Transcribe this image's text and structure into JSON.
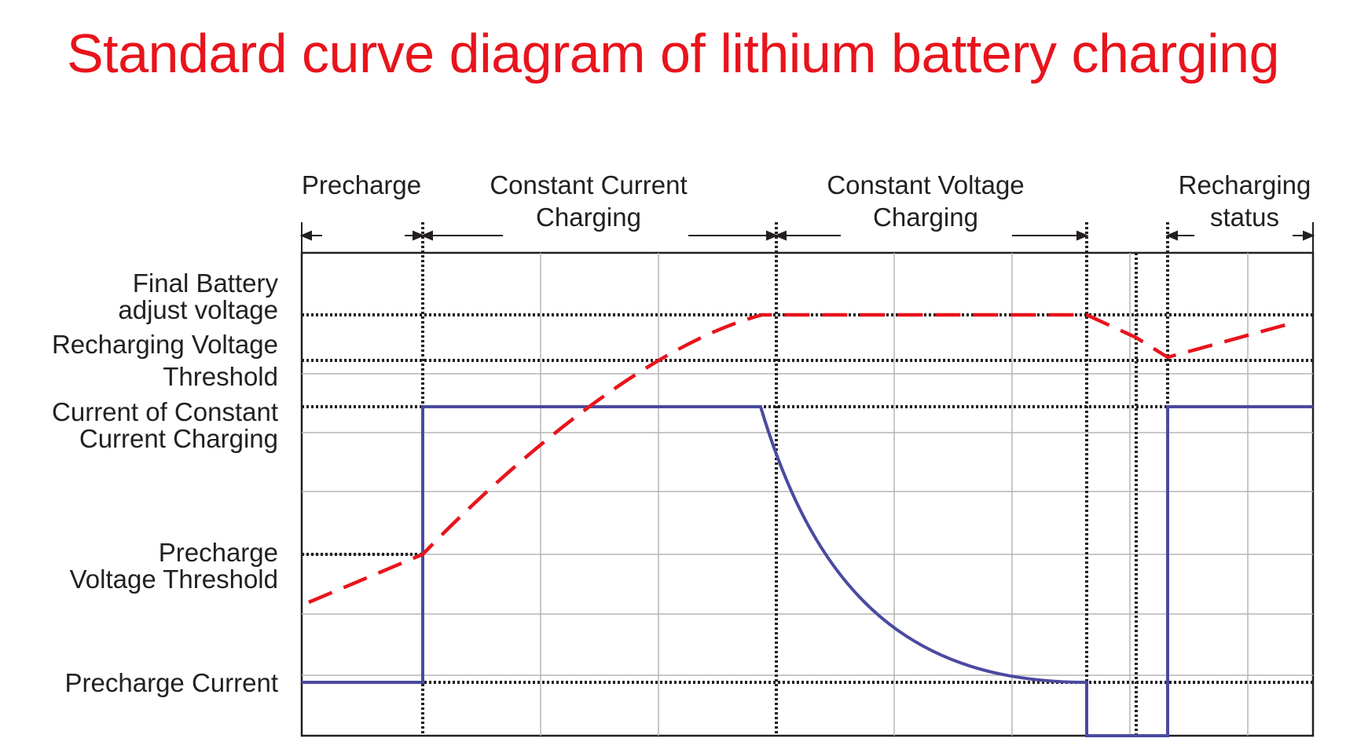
{
  "title": "Standard curve diagram of lithium battery charging",
  "phases": [
    {
      "lines": [
        "Precharge"
      ]
    },
    {
      "lines": [
        "Constant Current",
        "Charging"
      ]
    },
    {
      "lines": [
        "Constant Voltage",
        "Charging"
      ]
    },
    {
      "lines": [
        "Recharging",
        "status"
      ]
    }
  ],
  "levels": [
    {
      "lines": [
        "Final Battery",
        "adjust voltage"
      ]
    },
    {
      "lines": [
        "Recharging Voltage",
        "Threshold"
      ]
    },
    {
      "lines": [
        "Current of Constant",
        "Current Charging"
      ]
    },
    {
      "lines": [
        "Precharge",
        "Voltage Threshold"
      ]
    },
    {
      "lines": [
        "Precharge Current"
      ]
    }
  ],
  "series": [
    {
      "key": "voltage",
      "style": "dashed",
      "color": "#e8141c"
    },
    {
      "key": "current",
      "style": "solid",
      "color": "#4b4aa0"
    }
  ],
  "colors": {
    "title": "#e8141c",
    "voltage": "#e8141c",
    "current": "#4b4aa0",
    "grid": "#b5b5b5",
    "text": "#231f20"
  }
}
